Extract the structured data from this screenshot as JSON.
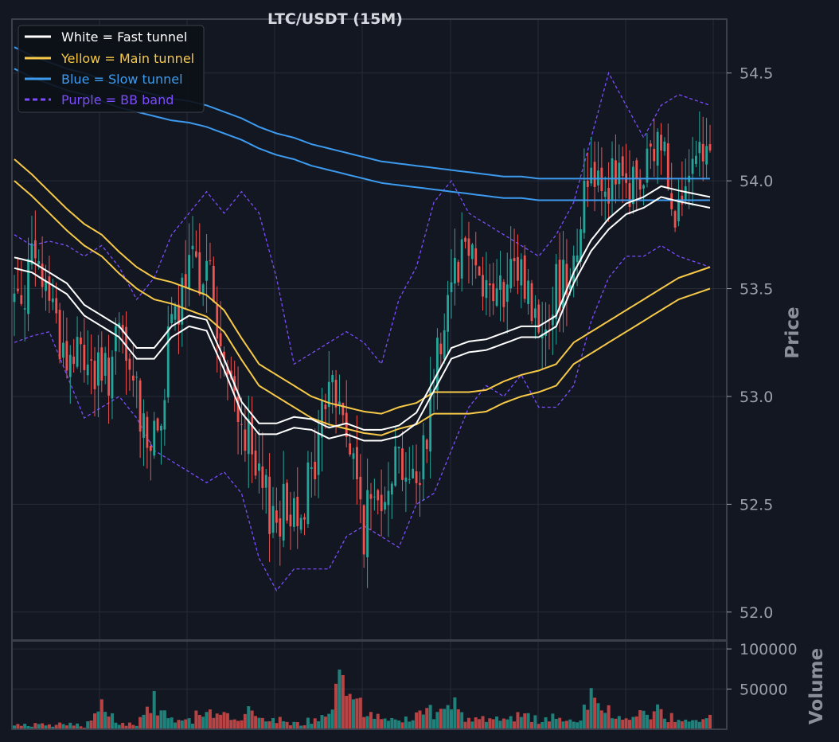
{
  "chart_data": {
    "type": "line",
    "title": "LTC/USDT (15M)",
    "ylabel": "Price",
    "volume_label": "Volume",
    "ylim": [
      51.87,
      54.75
    ],
    "volume_ylim": [
      0,
      110000
    ],
    "yticks": [
      52.0,
      52.5,
      53.0,
      53.5,
      54.0,
      54.5
    ],
    "volume_yticks": [
      50000,
      100000
    ],
    "ytick_labels": [
      "52.0",
      "52.5",
      "53.0",
      "53.5",
      "54.0",
      "54.5"
    ],
    "volume_ytick_labels": [
      "50000",
      "100000"
    ],
    "grid": true,
    "legend_position": "top-left",
    "colors": {
      "background": "#131722",
      "grid": "#262b38",
      "frame": "#3a3f4b",
      "up": "#26a69a",
      "down": "#ef5350",
      "fast": "#ffffff",
      "main": "#f7c948",
      "slow": "#3d9bef",
      "bb": "#7c4dff"
    },
    "legend": [
      {
        "key": "fast",
        "label": "White = Fast tunnel",
        "color": "#ffffff",
        "dashed": false
      },
      {
        "key": "main",
        "label": "Yellow = Main tunnel",
        "color": "#f7c948",
        "dashed": false
      },
      {
        "key": "slow",
        "label": "Blue = Slow tunnel",
        "color": "#3d9bef",
        "dashed": false
      },
      {
        "key": "bb",
        "label": "Purple = BB band",
        "color": "#7c4dff",
        "dashed": true
      }
    ],
    "anchors": {
      "x": [
        0,
        5,
        10,
        15,
        20,
        25,
        30,
        35,
        40,
        45,
        50,
        55,
        60,
        65,
        70,
        75,
        80,
        85,
        90,
        95,
        100,
        105,
        110,
        115,
        120,
        125,
        130,
        135,
        140,
        145,
        150,
        155,
        160,
        165,
        170,
        175,
        180,
        185,
        190,
        199
      ],
      "close": [
        53.45,
        53.6,
        53.5,
        53.15,
        53.2,
        53.05,
        53.25,
        53.0,
        52.75,
        53.3,
        53.55,
        53.65,
        53.1,
        52.9,
        52.55,
        52.45,
        52.5,
        52.6,
        53.1,
        52.85,
        52.4,
        52.6,
        52.75,
        52.55,
        53.1,
        53.6,
        53.75,
        53.5,
        53.45,
        53.6,
        53.3,
        53.5,
        53.65,
        54.1,
        54.0,
        53.95,
        54.0,
        54.2,
        53.85,
        54.15
      ],
      "volume": [
        4000,
        6000,
        5000,
        7000,
        4000,
        30000,
        9000,
        5000,
        40000,
        12000,
        10000,
        25000,
        15000,
        18000,
        22000,
        12000,
        8000,
        10000,
        14000,
        80000,
        20000,
        14000,
        12000,
        16000,
        25000,
        35000,
        12000,
        14000,
        10000,
        16000,
        12000,
        15000,
        10000,
        35000,
        20000,
        15000,
        18000,
        22000,
        10000,
        12000
      ],
      "bb_upper": [
        53.75,
        53.7,
        53.72,
        53.7,
        53.65,
        53.7,
        53.6,
        53.45,
        53.55,
        53.75,
        53.85,
        53.95,
        53.85,
        53.95,
        53.85,
        53.55,
        53.15,
        53.2,
        53.25,
        53.3,
        53.25,
        53.15,
        53.45,
        53.6,
        53.9,
        54.0,
        53.85,
        53.8,
        53.75,
        53.7,
        53.65,
        53.75,
        53.9,
        54.2,
        54.5,
        54.35,
        54.2,
        54.35,
        54.4,
        54.35
      ],
      "bb_lower": [
        53.25,
        53.28,
        53.3,
        53.1,
        52.9,
        52.95,
        53.0,
        52.9,
        52.75,
        52.7,
        52.65,
        52.6,
        52.65,
        52.55,
        52.25,
        52.1,
        52.2,
        52.2,
        52.2,
        52.35,
        52.4,
        52.35,
        52.3,
        52.5,
        52.55,
        52.75,
        52.95,
        53.05,
        53.0,
        53.1,
        52.95,
        52.95,
        53.05,
        53.35,
        53.55,
        53.65,
        53.65,
        53.7,
        53.65,
        53.6
      ],
      "fast": [
        53.62,
        53.6,
        53.55,
        53.5,
        53.4,
        53.35,
        53.3,
        53.2,
        53.2,
        53.3,
        53.35,
        53.33,
        53.15,
        52.95,
        52.85,
        52.85,
        52.88,
        52.87,
        52.83,
        52.85,
        52.82,
        52.82,
        52.84,
        52.9,
        53.05,
        53.2,
        53.23,
        53.24,
        53.27,
        53.3,
        53.3,
        53.35,
        53.55,
        53.7,
        53.8,
        53.87,
        53.9,
        53.95,
        53.93,
        53.9
      ],
      "main": [
        54.05,
        53.98,
        53.9,
        53.82,
        53.75,
        53.7,
        53.62,
        53.55,
        53.5,
        53.48,
        53.45,
        53.42,
        53.35,
        53.22,
        53.1,
        53.05,
        53.0,
        52.95,
        52.92,
        52.9,
        52.88,
        52.87,
        52.9,
        52.92,
        52.97,
        52.97,
        52.97,
        52.98,
        53.02,
        53.05,
        53.07,
        53.1,
        53.2,
        53.25,
        53.3,
        53.35,
        53.4,
        53.45,
        53.5,
        53.55
      ],
      "slow": [
        54.57,
        54.53,
        54.5,
        54.47,
        54.45,
        54.42,
        54.39,
        54.37,
        54.35,
        54.33,
        54.32,
        54.3,
        54.27,
        54.24,
        54.2,
        54.17,
        54.15,
        54.12,
        54.1,
        54.08,
        54.06,
        54.04,
        54.03,
        54.02,
        54.01,
        54.0,
        53.99,
        53.98,
        53.97,
        53.97,
        53.96,
        53.96,
        53.96,
        53.96,
        53.96,
        53.96,
        53.96,
        53.96,
        53.96,
        53.96
      ]
    }
  }
}
